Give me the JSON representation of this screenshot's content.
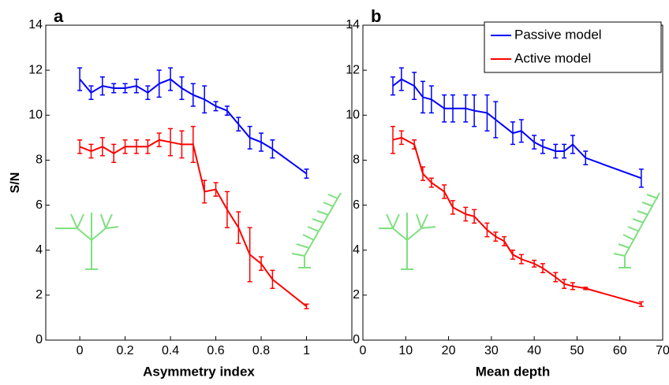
{
  "chart_data": [
    {
      "type": "line",
      "title": "a",
      "x_label": "Asymmetry index",
      "y_label": "S/N",
      "xlim": [
        -0.15,
        1.2
      ],
      "ylim": [
        0,
        14
      ],
      "xticks": [
        0,
        0.2,
        0.4,
        0.6,
        0.8,
        1
      ],
      "yticks": [
        0,
        2,
        4,
        6,
        8,
        10,
        12,
        14
      ],
      "series": [
        {
          "name": "Passive model",
          "color": "#0000ff",
          "x": [
            0,
            0.05,
            0.1,
            0.15,
            0.2,
            0.25,
            0.3,
            0.35,
            0.4,
            0.45,
            0.5,
            0.55,
            0.6,
            0.65,
            0.7,
            0.75,
            0.8,
            0.85,
            1
          ],
          "values": [
            11.6,
            11.0,
            11.3,
            11.2,
            11.2,
            11.3,
            11.0,
            11.4,
            11.6,
            11.2,
            10.9,
            10.7,
            10.4,
            10.2,
            9.6,
            9.0,
            8.8,
            8.5,
            7.4
          ],
          "errors": [
            0.5,
            0.3,
            0.4,
            0.2,
            0.2,
            0.3,
            0.3,
            0.6,
            0.5,
            0.5,
            0.5,
            0.6,
            0.2,
            0.2,
            0.3,
            0.5,
            0.4,
            0.4,
            0.2
          ]
        },
        {
          "name": "Active model",
          "color": "#ff0000",
          "x": [
            0,
            0.05,
            0.1,
            0.15,
            0.2,
            0.25,
            0.3,
            0.35,
            0.4,
            0.45,
            0.5,
            0.55,
            0.6,
            0.65,
            0.7,
            0.75,
            0.8,
            0.85,
            1
          ],
          "values": [
            8.6,
            8.4,
            8.6,
            8.3,
            8.6,
            8.6,
            8.6,
            8.9,
            8.8,
            8.7,
            8.7,
            6.6,
            6.7,
            5.8,
            5.0,
            3.8,
            3.4,
            2.7,
            1.5
          ],
          "errors": [
            0.3,
            0.3,
            0.4,
            0.4,
            0.3,
            0.3,
            0.3,
            0.3,
            0.6,
            0.6,
            0.8,
            0.5,
            0.3,
            0.8,
            0.7,
            1.2,
            0.3,
            0.4,
            0.1
          ]
        }
      ]
    },
    {
      "type": "line",
      "title": "b",
      "x_label": "Mean depth",
      "legend": "upper right",
      "xlim": [
        0,
        70
      ],
      "ylim": [
        0,
        14
      ],
      "xticks": [
        0,
        10,
        20,
        30,
        40,
        50,
        60,
        70
      ],
      "yticks": [
        0,
        2,
        4,
        6,
        8,
        10,
        12,
        14
      ],
      "series": [
        {
          "name": "Passive model",
          "color": "#0000ff",
          "x": [
            7,
            9,
            12,
            14,
            16,
            19,
            21,
            24,
            26,
            29,
            31,
            35,
            37,
            40,
            42,
            45,
            47,
            49,
            52,
            65
          ],
          "values": [
            11.3,
            11.6,
            11.3,
            10.8,
            10.7,
            10.3,
            10.3,
            10.3,
            10.2,
            10.1,
            9.8,
            9.2,
            9.3,
            8.8,
            8.6,
            8.4,
            8.4,
            8.7,
            8.1,
            7.2
          ],
          "errors": [
            0.4,
            0.5,
            0.6,
            0.7,
            0.6,
            0.6,
            0.6,
            0.6,
            0.7,
            0.8,
            0.8,
            0.5,
            0.5,
            0.3,
            0.3,
            0.3,
            0.3,
            0.4,
            0.3,
            0.4
          ]
        },
        {
          "name": "Active model",
          "color": "#ff0000",
          "x": [
            7,
            9,
            12,
            14,
            16,
            19,
            21,
            24,
            26,
            29,
            31,
            33,
            35,
            37,
            40,
            42,
            45,
            47,
            49,
            52,
            65
          ],
          "values": [
            8.9,
            9.0,
            8.7,
            7.4,
            7.0,
            6.6,
            5.9,
            5.6,
            5.5,
            4.9,
            4.6,
            4.4,
            3.8,
            3.6,
            3.4,
            3.2,
            2.8,
            2.5,
            2.4,
            2.3,
            1.6
          ],
          "errors": [
            0.6,
            0.3,
            0.2,
            0.3,
            0.2,
            0.3,
            0.3,
            0.3,
            0.3,
            0.3,
            0.2,
            0.2,
            0.2,
            0.2,
            0.15,
            0.2,
            0.2,
            0.2,
            0.15,
            0.05,
            0.1
          ]
        }
      ]
    }
  ]
}
